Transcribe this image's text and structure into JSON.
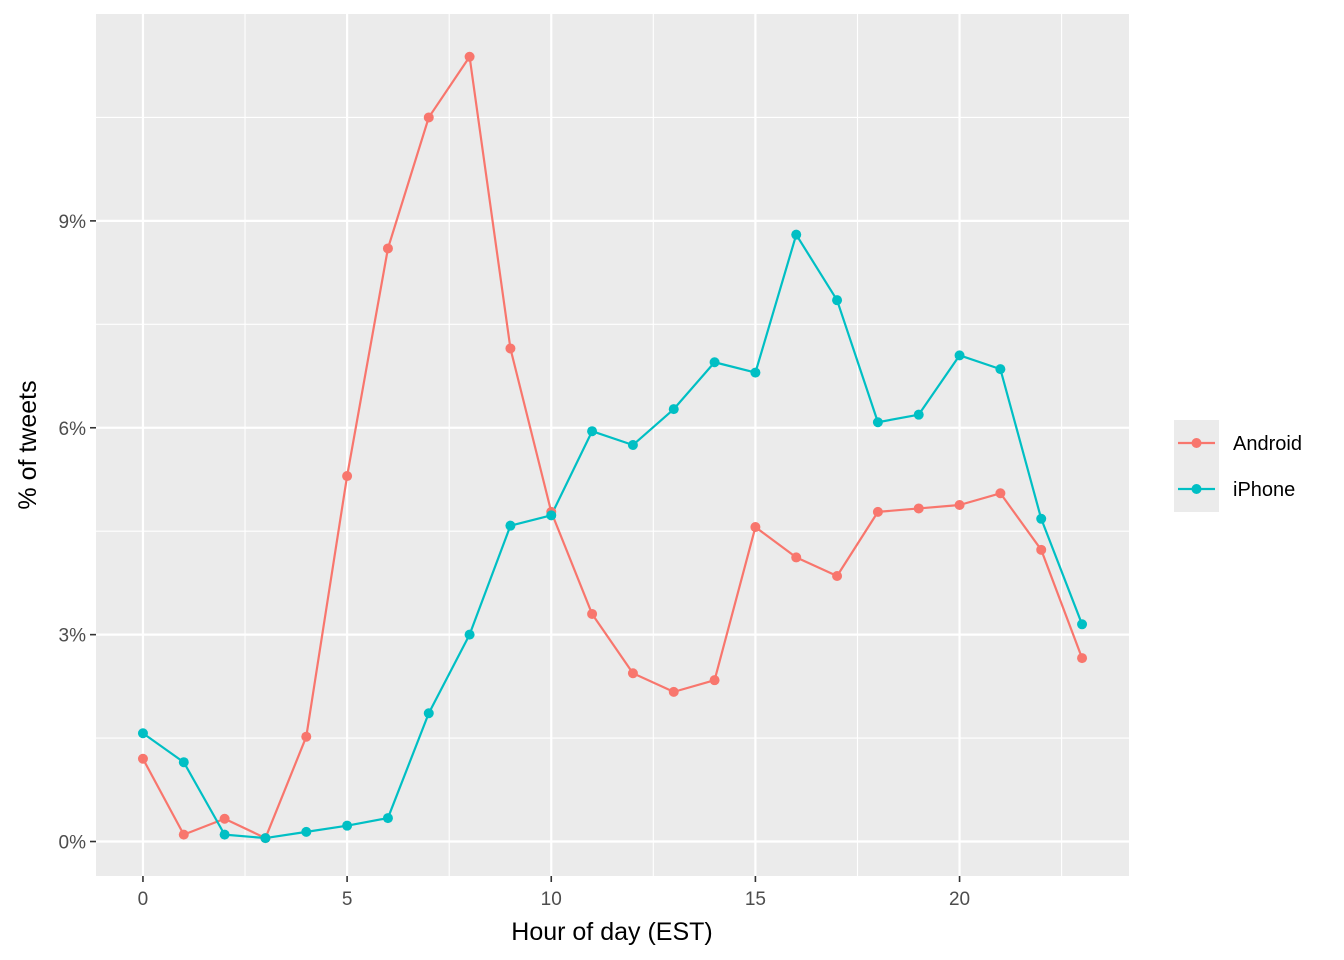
{
  "chart_data": {
    "type": "line",
    "title": "",
    "xlabel": "Hour of day (EST)",
    "ylabel": "% of tweets",
    "x": [
      0,
      1,
      2,
      3,
      4,
      5,
      6,
      7,
      8,
      9,
      10,
      11,
      12,
      13,
      14,
      15,
      16,
      17,
      18,
      19,
      20,
      21,
      22,
      23
    ],
    "xlim": [
      -1.15,
      24.15
    ],
    "ylim": [
      -0.5,
      12.0
    ],
    "xticks": [
      0,
      5,
      10,
      15,
      20
    ],
    "xtick_labels": [
      "0",
      "5",
      "10",
      "15",
      "20"
    ],
    "yticks": [
      0,
      3,
      6,
      9
    ],
    "ytick_labels": [
      "0%",
      "3%",
      "6%",
      "9%"
    ],
    "grid": true,
    "legend_position": "right",
    "series": [
      {
        "name": "Android",
        "color": "#F8766D",
        "values": [
          1.2,
          0.1,
          0.33,
          0.05,
          1.52,
          5.3,
          8.6,
          10.5,
          11.38,
          7.15,
          4.78,
          3.3,
          2.44,
          2.17,
          2.34,
          4.56,
          4.12,
          3.85,
          4.78,
          4.83,
          4.88,
          5.05,
          4.23,
          2.66
        ]
      },
      {
        "name": "iPhone",
        "color": "#00BFC4",
        "values": [
          1.57,
          1.15,
          0.1,
          0.05,
          0.14,
          0.23,
          0.34,
          1.86,
          3.0,
          4.58,
          4.73,
          5.95,
          5.75,
          6.27,
          6.95,
          6.8,
          8.8,
          7.85,
          6.08,
          6.19,
          7.05,
          6.85,
          4.68,
          3.15
        ]
      }
    ]
  }
}
